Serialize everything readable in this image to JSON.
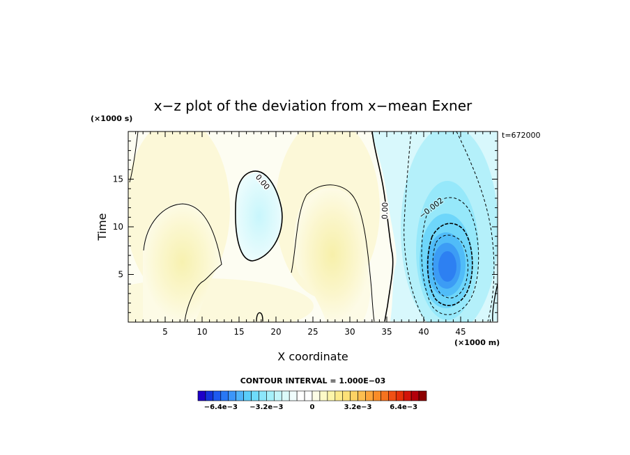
{
  "chart_data": {
    "type": "contour",
    "title": "x−z plot of the deviation from x−mean Exner",
    "xlabel": "X coordinate",
    "ylabel": "Time",
    "x_unit": "(×1000 m)",
    "y_unit": "(×1000 s)",
    "time_label": "t=672000",
    "xlim": [
      0,
      50
    ],
    "ylim": [
      0,
      20
    ],
    "x_ticks": [
      5,
      10,
      15,
      20,
      25,
      30,
      35,
      40,
      45
    ],
    "y_ticks": [
      5,
      10,
      15
    ],
    "contour_interval_text": "CONTOUR INTERVAL = 1.000E−03",
    "contour_interval": 0.001,
    "contour_labels": [
      {
        "text": "0.00",
        "x": 18.5,
        "y": 14.6
      },
      {
        "text": "0.00",
        "x": 35.1,
        "y": 11.8
      },
      {
        "text": "−0.002",
        "x": 41.2,
        "y": 12.3
      }
    ],
    "features": [
      {
        "kind": "positive-region",
        "x": 7.5,
        "y": 7.2,
        "peak": 0.002
      },
      {
        "kind": "positive-region",
        "x": 28,
        "y": 9.5,
        "peak": 0.002
      },
      {
        "kind": "weak-negative-region",
        "x": 17.5,
        "y": 10.5,
        "peak": -0.001
      },
      {
        "kind": "negative-core",
        "x": 43,
        "y": 5.8,
        "peak": -0.0058
      }
    ],
    "colorbar": {
      "tick_labels": [
        "−6.4e−3",
        "−3.2e−3",
        "0",
        "3.2e−3",
        "6.4e−3"
      ],
      "tick_values": [
        -0.0064,
        -0.0032,
        0,
        0.0032,
        0.0064
      ],
      "range": [
        -0.008,
        0.008
      ],
      "colors": [
        "#1e00c8",
        "#1434dc",
        "#1e5af0",
        "#2878f5",
        "#3c96fa",
        "#50b4fa",
        "#5acdfa",
        "#6edcfa",
        "#8ce6fa",
        "#a5f0fa",
        "#c3f5fa",
        "#dcfafa",
        "#f0fdfd",
        "#ffffff",
        "#ffffff",
        "#fdfde6",
        "#fdfac8",
        "#fdf5aa",
        "#fdeb8c",
        "#fde178",
        "#fdd264",
        "#fdbe50",
        "#fda53c",
        "#fa8c28",
        "#f5731e",
        "#f05014",
        "#e6320a",
        "#d2140a",
        "#b4000a",
        "#8c0000"
      ]
    }
  }
}
